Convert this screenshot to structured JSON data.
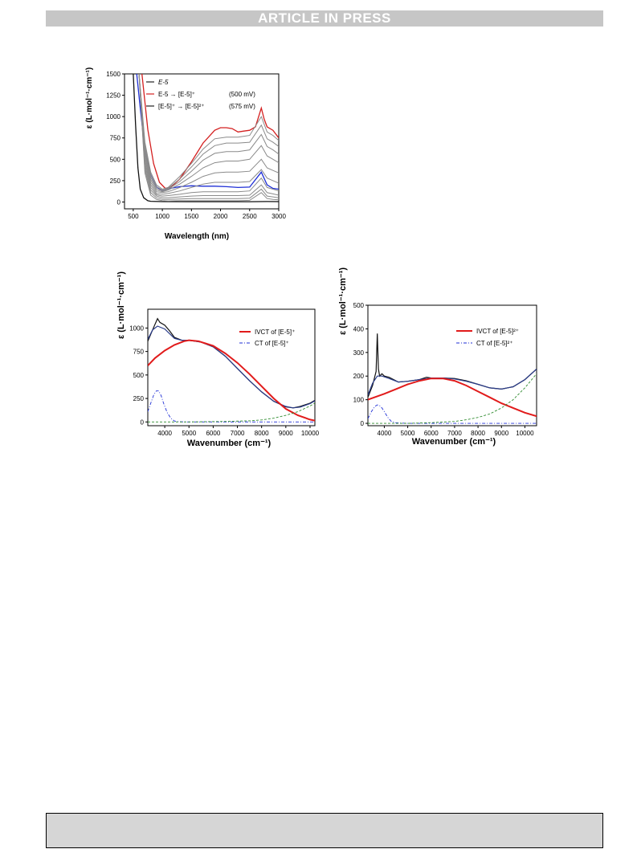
{
  "header": {
    "banner": "ARTICLE IN PRESS"
  },
  "chart_data": [
    {
      "type": "line",
      "xlabel": "Wavelength (nm)",
      "ylabel": "ε  (L·mol⁻¹·cm⁻¹)",
      "xlim": [
        350,
        3000
      ],
      "ylim": [
        -80,
        1500
      ],
      "xticks": [
        500,
        1000,
        1500,
        2000,
        2500,
        3000
      ],
      "yticks": [
        0,
        250,
        500,
        750,
        1000,
        1250,
        1500
      ],
      "legend": {
        "position": "top-left",
        "entries": [
          {
            "label": "E-5",
            "color": "#222222"
          },
          {
            "label": "E-5 → [E-5]⁺",
            "potential": "(500 mV)",
            "color": "#d42020"
          },
          {
            "label": "[E-5]⁺ → [E-5]²⁺",
            "potential": "(575 mV)",
            "color": "#222222"
          }
        ]
      },
      "colors": {
        "reference": "#111111",
        "red": "#d42020",
        "blue": "#1f2fd6",
        "grey": "#8a8a8a"
      },
      "series": [
        {
          "role": "reference",
          "x": [
            500,
            540,
            580,
            620,
            680,
            750,
            800,
            1000,
            1500,
            2000,
            2500,
            2800,
            3000
          ],
          "y": [
            1500,
            900,
            400,
            150,
            50,
            15,
            8,
            5,
            4,
            4,
            4,
            6,
            5
          ]
        },
        {
          "role": "red",
          "x": [
            650,
            750,
            850,
            950,
            1050,
            1150,
            1300,
            1500,
            1700,
            1900,
            2000,
            2100,
            2200,
            2300,
            2400,
            2500,
            2600,
            2700,
            2750,
            2800,
            2900,
            3000
          ],
          "y": [
            1500,
            850,
            450,
            230,
            160,
            175,
            270,
            470,
            690,
            840,
            870,
            870,
            860,
            820,
            830,
            840,
            880,
            1100,
            970,
            880,
            840,
            750
          ]
        },
        {
          "role": "blue",
          "x": [
            560,
            620,
            700,
            800,
            900,
            1000,
            1100,
            1300,
            1500,
            1700,
            1900,
            2100,
            2300,
            2500,
            2700,
            2800,
            2900,
            3000
          ],
          "y": [
            1500,
            1100,
            600,
            320,
            180,
            130,
            155,
            180,
            190,
            185,
            185,
            180,
            170,
            175,
            350,
            200,
            160,
            150
          ]
        },
        {
          "role": "grey",
          "x": [
            600,
            700,
            800,
            900,
            1000,
            1100,
            1300,
            1500,
            1700,
            1900,
            2100,
            2300,
            2500,
            2700,
            2800,
            2900,
            3000
          ],
          "y": [
            1500,
            700,
            350,
            200,
            150,
            170,
            300,
            450,
            620,
            740,
            760,
            760,
            780,
            1000,
            820,
            780,
            720
          ]
        },
        {
          "role": "grey",
          "x": [
            600,
            700,
            800,
            900,
            1000,
            1100,
            1300,
            1500,
            1700,
            1900,
            2100,
            2300,
            2500,
            2700,
            2800,
            2900,
            3000
          ],
          "y": [
            1500,
            660,
            320,
            180,
            140,
            160,
            270,
            410,
            560,
            660,
            690,
            690,
            700,
            900,
            740,
            700,
            650
          ]
        },
        {
          "role": "grey",
          "x": [
            600,
            700,
            800,
            900,
            1000,
            1100,
            1300,
            1500,
            1700,
            1900,
            2100,
            2300,
            2500,
            2700,
            2800,
            2900,
            3000
          ],
          "y": [
            1500,
            620,
            290,
            160,
            130,
            150,
            240,
            360,
            490,
            570,
            590,
            590,
            610,
            790,
            650,
            610,
            560
          ]
        },
        {
          "role": "grey",
          "x": [
            600,
            700,
            800,
            900,
            1000,
            1100,
            1300,
            1500,
            1700,
            1900,
            2100,
            2300,
            2500,
            2700,
            2800,
            2900,
            3000
          ],
          "y": [
            1500,
            580,
            260,
            140,
            120,
            140,
            210,
            300,
            400,
            460,
            480,
            480,
            500,
            660,
            540,
            500,
            460
          ]
        },
        {
          "role": "grey",
          "x": [
            600,
            700,
            800,
            900,
            1000,
            1100,
            1300,
            1500,
            1700,
            1900,
            2100,
            2300,
            2500,
            2700,
            2800,
            2900,
            3000
          ],
          "y": [
            1500,
            540,
            230,
            120,
            110,
            120,
            170,
            230,
            300,
            340,
            350,
            350,
            360,
            500,
            400,
            370,
            340
          ]
        },
        {
          "role": "grey",
          "x": [
            600,
            700,
            800,
            900,
            1000,
            1100,
            1300,
            1500,
            1700,
            1900,
            2100,
            2300,
            2500,
            2700,
            2800,
            2900,
            3000
          ],
          "y": [
            1500,
            500,
            200,
            100,
            90,
            100,
            130,
            170,
            210,
            230,
            230,
            230,
            240,
            380,
            280,
            250,
            220
          ]
        },
        {
          "role": "grey",
          "x": [
            600,
            700,
            800,
            900,
            1000,
            1100,
            1300,
            1500,
            1700,
            1900,
            2100,
            2300,
            2500,
            2700,
            2800,
            2900,
            3000
          ],
          "y": [
            1500,
            460,
            170,
            85,
            70,
            75,
            90,
            110,
            120,
            120,
            120,
            120,
            130,
            280,
            170,
            150,
            130
          ]
        },
        {
          "role": "grey",
          "x": [
            600,
            700,
            800,
            900,
            1000,
            1100,
            1300,
            1500,
            1700,
            1900,
            2100,
            2300,
            2500,
            2700,
            2800,
            2900,
            3000
          ],
          "y": [
            1500,
            420,
            140,
            70,
            50,
            50,
            60,
            70,
            75,
            75,
            75,
            75,
            80,
            200,
            110,
            95,
            80
          ]
        },
        {
          "role": "grey",
          "x": [
            600,
            700,
            800,
            900,
            1000,
            1100,
            1300,
            1500,
            1700,
            1900,
            2100,
            2300,
            2500,
            2700,
            2800,
            2900,
            3000
          ],
          "y": [
            1500,
            380,
            110,
            50,
            30,
            30,
            35,
            40,
            40,
            40,
            40,
            40,
            45,
            150,
            70,
            60,
            50
          ]
        },
        {
          "role": "grey",
          "x": [
            600,
            700,
            800,
            900,
            1000,
            1100,
            1300,
            1500,
            1700,
            1900,
            2100,
            2300,
            2500,
            2700,
            2800,
            2900,
            3000
          ],
          "y": [
            1500,
            340,
            80,
            30,
            15,
            12,
            15,
            15,
            15,
            15,
            15,
            15,
            20,
            110,
            40,
            30,
            25
          ]
        }
      ]
    },
    {
      "type": "line",
      "xlabel": "Wavenumber (cm⁻¹)",
      "ylabel": "ε  (L·mol⁻¹·cm⁻¹)",
      "xlim": [
        3300,
        10200
      ],
      "ylim": [
        -40,
        1200
      ],
      "xticks": [
        4000,
        5000,
        6000,
        7000,
        8000,
        9000,
        10000
      ],
      "yticks": [
        0,
        250,
        500,
        750,
        1000
      ],
      "legend": {
        "position": "top-right",
        "entries": [
          {
            "label": "IVCT of [E-5]⁺",
            "style": "solid",
            "color": "#e11b1b"
          },
          {
            "label": "CT of [E-5]⁺",
            "style": "dash-dot",
            "color": "#1f2fd6"
          }
        ]
      },
      "series": [
        {
          "role": "experimental",
          "color": "#111111",
          "x": [
            3300,
            3450,
            3600,
            3700,
            3800,
            4000,
            4200,
            4400,
            4700,
            5000,
            5500,
            6000,
            6500,
            7000,
            7500,
            8000,
            8500,
            9000,
            9300,
            9600,
            10000,
            10200
          ],
          "y": [
            860,
            950,
            1040,
            1100,
            1060,
            1030,
            970,
            900,
            870,
            870,
            850,
            800,
            700,
            570,
            440,
            320,
            220,
            160,
            150,
            165,
            200,
            230
          ]
        },
        {
          "role": "fit-total",
          "color": "#2a3c8a",
          "x": [
            3300,
            3500,
            3700,
            4000,
            4400,
            4700,
            5000,
            5500,
            6000,
            6500,
            7000,
            7500,
            8000,
            8500,
            9000,
            9300,
            9600,
            10000,
            10200
          ],
          "y": [
            880,
            980,
            1020,
            990,
            890,
            870,
            870,
            850,
            800,
            700,
            570,
            440,
            320,
            220,
            165,
            150,
            158,
            195,
            225
          ]
        },
        {
          "role": "IVCT",
          "color": "#e11b1b",
          "x": [
            3300,
            3600,
            4000,
            4400,
            4800,
            5000,
            5400,
            6000,
            6500,
            7000,
            7500,
            8000,
            8500,
            9000,
            9500,
            10000,
            10200
          ],
          "y": [
            600,
            680,
            760,
            820,
            860,
            870,
            860,
            810,
            730,
            630,
            510,
            380,
            250,
            140,
            70,
            25,
            15
          ]
        },
        {
          "role": "CT",
          "color": "#1f2fd6",
          "x": [
            3300,
            3450,
            3550,
            3650,
            3750,
            3850,
            3950,
            4100,
            4250,
            4400,
            4600,
            5000,
            10200
          ],
          "y": [
            110,
            220,
            290,
            330,
            330,
            280,
            200,
            100,
            40,
            10,
            2,
            0,
            0
          ]
        },
        {
          "role": "baseline",
          "color": "#2e8b2e",
          "x": [
            3300,
            5000,
            6500,
            7500,
            8000,
            8500,
            9000,
            9500,
            10000,
            10200
          ],
          "y": [
            0,
            0,
            5,
            12,
            22,
            40,
            70,
            110,
            170,
            200
          ]
        }
      ]
    },
    {
      "type": "line",
      "xlabel": "Wavenumber (cm⁻¹)",
      "ylabel": "ε  (L·mol⁻¹·cm⁻¹)",
      "xlim": [
        3300,
        10500
      ],
      "ylim": [
        -10,
        500
      ],
      "xticks": [
        4000,
        5000,
        6000,
        7000,
        8000,
        9000,
        10000
      ],
      "yticks": [
        0,
        100,
        200,
        300,
        400,
        500
      ],
      "legend": {
        "position": "top-right",
        "entries": [
          {
            "label": "IVCT of [E-5]²⁺",
            "style": "solid",
            "color": "#e11b1b"
          },
          {
            "label": "CT of [E-5]²⁺",
            "style": "dash-dot",
            "color": "#1f2fd6"
          }
        ]
      },
      "series": [
        {
          "role": "experimental",
          "color": "#111111",
          "x": [
            3300,
            3500,
            3650,
            3700,
            3750,
            3800,
            3900,
            4000,
            4200,
            4400,
            4600,
            5000,
            5500,
            5800,
            6000,
            6500,
            7000,
            7500,
            8000,
            8500,
            9000,
            9500,
            10000,
            10500
          ],
          "y": [
            110,
            160,
            220,
            380,
            230,
            200,
            210,
            200,
            195,
            185,
            175,
            178,
            185,
            195,
            192,
            192,
            190,
            180,
            165,
            150,
            145,
            155,
            185,
            230
          ]
        },
        {
          "role": "fit-total",
          "color": "#2a3c8a",
          "x": [
            3300,
            3500,
            3700,
            3900,
            4200,
            4600,
            5000,
            5500,
            6000,
            6500,
            7000,
            7500,
            8000,
            8500,
            9000,
            9500,
            10000,
            10500
          ],
          "y": [
            120,
            170,
            200,
            200,
            190,
            175,
            178,
            185,
            192,
            192,
            188,
            178,
            165,
            150,
            145,
            155,
            185,
            230
          ]
        },
        {
          "role": "IVCT",
          "color": "#e11b1b",
          "x": [
            3300,
            4000,
            4500,
            5000,
            5500,
            6000,
            6500,
            7000,
            7500,
            8000,
            8500,
            9000,
            9500,
            10000,
            10500
          ],
          "y": [
            100,
            125,
            145,
            165,
            180,
            190,
            190,
            180,
            160,
            135,
            110,
            85,
            65,
            45,
            30
          ]
        },
        {
          "role": "CT",
          "color": "#1f2fd6",
          "x": [
            3300,
            3450,
            3600,
            3700,
            3800,
            3900,
            4000,
            4150,
            4300,
            4500,
            5000,
            10500
          ],
          "y": [
            20,
            50,
            72,
            78,
            75,
            65,
            50,
            25,
            8,
            2,
            0,
            0
          ]
        },
        {
          "role": "baseline",
          "color": "#2e8b2e",
          "x": [
            3300,
            5000,
            6000,
            7000,
            7500,
            8000,
            8500,
            9000,
            9500,
            10000,
            10500
          ],
          "y": [
            0,
            0,
            3,
            8,
            15,
            25,
            40,
            65,
            100,
            150,
            210
          ]
        }
      ]
    }
  ]
}
